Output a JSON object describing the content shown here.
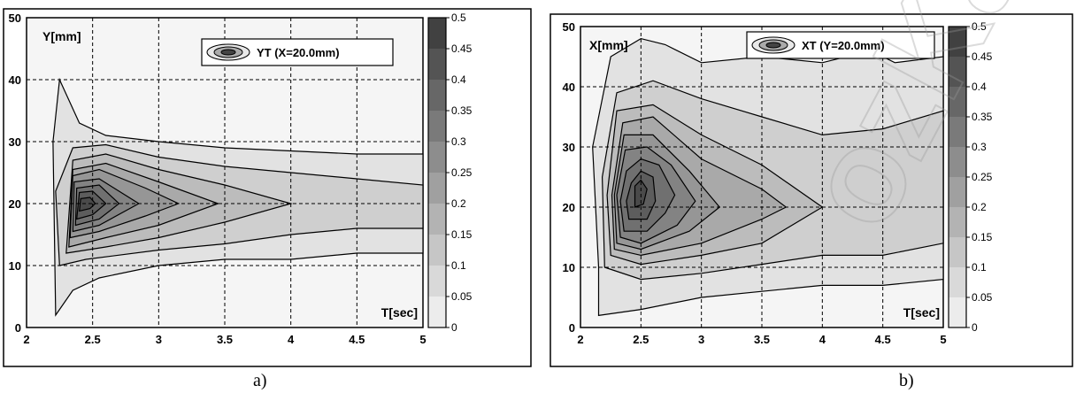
{
  "chart_data": [
    {
      "type": "heatmap",
      "caption": "a)",
      "title": "",
      "legend_label": "YT (X=20.0mm)",
      "xlabel": "T[sec]",
      "ylabel": "Y[mm]",
      "xlim": [
        2,
        5
      ],
      "ylim": [
        0,
        50
      ],
      "xticks": [
        "2",
        "2.5",
        "3",
        "3.5",
        "4",
        "4.5",
        "5"
      ],
      "yticks": [
        "0",
        "10",
        "20",
        "30",
        "40",
        "50"
      ],
      "colorbar_ticks": [
        "0",
        "0.05",
        "0.1",
        "0.15",
        "0.2",
        "0.25",
        "0.3",
        "0.35",
        "0.4",
        "0.45",
        "0.5"
      ],
      "colorbar_range": [
        0,
        0.5
      ],
      "grid": true,
      "legend_position": "top-right",
      "peak": {
        "x": 2.45,
        "y": 20
      },
      "contours": [
        {
          "level": 0.05,
          "points": [
            [
              2.22,
              2
            ],
            [
              2.35,
              6
            ],
            [
              2.55,
              8
            ],
            [
              3.0,
              10
            ],
            [
              3.5,
              11
            ],
            [
              4.0,
              11
            ],
            [
              4.5,
              12
            ],
            [
              5.0,
              12
            ],
            [
              5.0,
              28
            ],
            [
              4.5,
              28
            ],
            [
              4.0,
              28.5
            ],
            [
              3.5,
              29
            ],
            [
              3.0,
              30
            ],
            [
              2.6,
              31
            ],
            [
              2.4,
              33
            ],
            [
              2.25,
              40
            ],
            [
              2.2,
              30
            ]
          ]
        },
        {
          "level": 0.1,
          "points": [
            [
              2.25,
              10
            ],
            [
              2.45,
              11
            ],
            [
              3.0,
              12.5
            ],
            [
              3.5,
              13.5
            ],
            [
              4.0,
              15
            ],
            [
              4.5,
              16
            ],
            [
              5.0,
              16
            ],
            [
              5.0,
              23
            ],
            [
              4.5,
              24
            ],
            [
              4.0,
              25
            ],
            [
              3.5,
              26
            ],
            [
              3.0,
              27.5
            ],
            [
              2.6,
              29.5
            ],
            [
              2.35,
              29
            ],
            [
              2.22,
              22
            ]
          ]
        },
        {
          "level": 0.15,
          "points": [
            [
              2.3,
              12
            ],
            [
              2.6,
              13
            ],
            [
              3.0,
              14.5
            ],
            [
              3.5,
              17
            ],
            [
              4.0,
              20
            ],
            [
              3.5,
              23
            ],
            [
              3.0,
              25.5
            ],
            [
              2.6,
              28
            ],
            [
              2.35,
              27
            ]
          ]
        },
        {
          "level": 0.2,
          "points": [
            [
              2.32,
              13
            ],
            [
              2.6,
              14.5
            ],
            [
              3.0,
              16.5
            ],
            [
              3.45,
              20
            ],
            [
              3.0,
              23.5
            ],
            [
              2.6,
              26.5
            ],
            [
              2.35,
              25.5
            ]
          ]
        },
        {
          "level": 0.25,
          "points": [
            [
              2.33,
              14.5
            ],
            [
              2.55,
              15.5
            ],
            [
              2.9,
              18
            ],
            [
              3.15,
              20
            ],
            [
              2.9,
              22.5
            ],
            [
              2.55,
              25.5
            ],
            [
              2.35,
              24.5
            ]
          ]
        },
        {
          "level": 0.3,
          "points": [
            [
              2.35,
              15.5
            ],
            [
              2.55,
              16.5
            ],
            [
              2.85,
              20
            ],
            [
              2.55,
              24
            ],
            [
              2.36,
              23.5
            ]
          ]
        },
        {
          "level": 0.35,
          "points": [
            [
              2.37,
              16.5
            ],
            [
              2.55,
              17.5
            ],
            [
              2.7,
              20
            ],
            [
              2.55,
              23
            ],
            [
              2.38,
              22.5
            ]
          ]
        },
        {
          "level": 0.4,
          "points": [
            [
              2.38,
              17.5
            ],
            [
              2.5,
              18.2
            ],
            [
              2.6,
              20
            ],
            [
              2.5,
              22
            ],
            [
              2.4,
              21.8
            ]
          ]
        },
        {
          "level": 0.45,
          "points": [
            [
              2.4,
              18.8
            ],
            [
              2.48,
              19.2
            ],
            [
              2.52,
              20
            ],
            [
              2.48,
              21
            ],
            [
              2.41,
              20.8
            ]
          ]
        }
      ]
    },
    {
      "type": "heatmap",
      "caption": "b)",
      "title": "",
      "legend_label": "XT (Y=20.0mm)",
      "xlabel": "T[sec]",
      "ylabel": "X[mm]",
      "xlim": [
        2,
        5
      ],
      "ylim": [
        0,
        50
      ],
      "xticks": [
        "2",
        "2.5",
        "3",
        "3.5",
        "4",
        "4.5",
        "5"
      ],
      "yticks": [
        "0",
        "10",
        "20",
        "30",
        "40",
        "50"
      ],
      "colorbar_ticks": [
        "0",
        "0.05",
        "0.1",
        "0.15",
        "0.2",
        "0.25",
        "0.3",
        "0.35",
        "0.4",
        "0.45",
        "0.5"
      ],
      "colorbar_range": [
        0,
        0.5
      ],
      "grid": true,
      "legend_position": "top-right",
      "peak": {
        "x": 2.5,
        "y": 24
      },
      "contours": [
        {
          "level": 0.05,
          "points": [
            [
              2.15,
              2
            ],
            [
              2.5,
              3
            ],
            [
              3.0,
              5
            ],
            [
              3.5,
              6
            ],
            [
              4.0,
              7
            ],
            [
              4.5,
              7
            ],
            [
              5.0,
              8
            ],
            [
              5.0,
              45
            ],
            [
              4.6,
              44
            ],
            [
              4.4,
              46
            ],
            [
              4.0,
              44
            ],
            [
              3.5,
              45
            ],
            [
              3.0,
              44
            ],
            [
              2.7,
              47
            ],
            [
              2.5,
              48
            ],
            [
              2.25,
              45
            ],
            [
              2.1,
              30
            ],
            [
              2.15,
              10
            ]
          ]
        },
        {
          "level": 0.1,
          "points": [
            [
              2.2,
              10
            ],
            [
              2.5,
              8
            ],
            [
              3.0,
              9
            ],
            [
              3.5,
              10.5
            ],
            [
              4.0,
              12
            ],
            [
              4.5,
              12
            ],
            [
              5.0,
              14
            ],
            [
              5.0,
              36
            ],
            [
              4.5,
              33
            ],
            [
              4.0,
              32
            ],
            [
              3.5,
              35
            ],
            [
              3.0,
              38
            ],
            [
              2.6,
              41
            ],
            [
              2.3,
              39
            ],
            [
              2.18,
              25
            ]
          ]
        },
        {
          "level": 0.15,
          "points": [
            [
              2.25,
              12
            ],
            [
              2.5,
              10.5
            ],
            [
              3.0,
              12
            ],
            [
              3.5,
              14
            ],
            [
              4.0,
              20
            ],
            [
              3.5,
              27
            ],
            [
              3.0,
              32
            ],
            [
              2.6,
              37
            ],
            [
              2.3,
              36
            ],
            [
              2.22,
              22
            ]
          ]
        },
        {
          "level": 0.2,
          "points": [
            [
              2.28,
              13
            ],
            [
              2.5,
              12
            ],
            [
              3.0,
              14
            ],
            [
              3.5,
              18
            ],
            [
              3.7,
              20
            ],
            [
              3.5,
              23
            ],
            [
              3.0,
              28
            ],
            [
              2.6,
              35
            ],
            [
              2.35,
              34
            ],
            [
              2.26,
              22
            ]
          ]
        },
        {
          "level": 0.25,
          "points": [
            [
              2.3,
              14
            ],
            [
              2.5,
              13
            ],
            [
              2.9,
              16
            ],
            [
              3.15,
              20
            ],
            [
              2.9,
              26
            ],
            [
              2.6,
              32
            ],
            [
              2.36,
              32
            ],
            [
              2.28,
              22
            ]
          ]
        },
        {
          "level": 0.3,
          "points": [
            [
              2.33,
              15
            ],
            [
              2.5,
              14
            ],
            [
              2.8,
              17
            ],
            [
              2.95,
              21
            ],
            [
              2.75,
              27
            ],
            [
              2.55,
              30
            ],
            [
              2.37,
              29.5
            ],
            [
              2.3,
              22
            ]
          ]
        },
        {
          "level": 0.35,
          "points": [
            [
              2.36,
              16
            ],
            [
              2.55,
              16
            ],
            [
              2.7,
              19
            ],
            [
              2.78,
              22
            ],
            [
              2.65,
              27
            ],
            [
              2.5,
              28
            ],
            [
              2.38,
              26
            ],
            [
              2.33,
              21
            ]
          ]
        },
        {
          "level": 0.4,
          "points": [
            [
              2.4,
              18
            ],
            [
              2.55,
              18
            ],
            [
              2.62,
              21
            ],
            [
              2.6,
              25
            ],
            [
              2.5,
              26
            ],
            [
              2.42,
              24
            ],
            [
              2.38,
              21
            ]
          ]
        },
        {
          "level": 0.45,
          "points": [
            [
              2.45,
              20
            ],
            [
              2.52,
              20.5
            ],
            [
              2.55,
              23
            ],
            [
              2.5,
              24.5
            ],
            [
              2.45,
              23.5
            ]
          ]
        }
      ]
    }
  ]
}
